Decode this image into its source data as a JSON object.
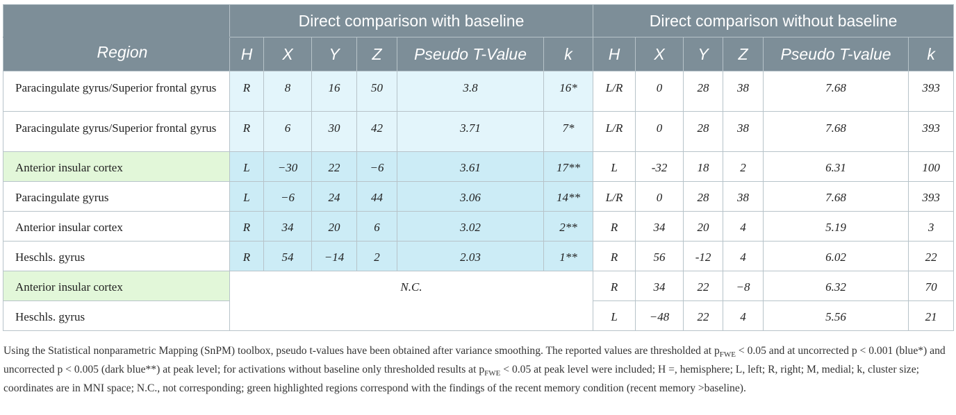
{
  "header": {
    "group_with_baseline": "Direct comparison with baseline",
    "group_without_baseline": "Direct comparison without baseline",
    "region": "Region",
    "cols_with": [
      "H",
      "X",
      "Y",
      "Z",
      "Pseudo T-Value",
      "k"
    ],
    "cols_without": [
      "H",
      "X",
      "Y",
      "Z",
      "Pseudo T-value",
      "k"
    ]
  },
  "rows": [
    {
      "region": "Paracingulate gyrus/Superior frontal gyrus",
      "green": false,
      "shade": "light",
      "with": [
        "R",
        "8",
        "16",
        "50",
        "3.8",
        "16*"
      ],
      "without": [
        "L/R",
        "0",
        "28",
        "38",
        "7.68",
        "393"
      ]
    },
    {
      "region": "Paracingulate gyrus/Superior frontal gyrus",
      "green": false,
      "shade": "light",
      "with": [
        "R",
        "6",
        "30",
        "42",
        "3.71",
        "7*"
      ],
      "without": [
        "L/R",
        "0",
        "28",
        "38",
        "7.68",
        "393"
      ]
    },
    {
      "region": "Anterior insular cortex",
      "green": true,
      "shade": "dark",
      "with": [
        "L",
        "−30",
        "22",
        "−6",
        "3.61",
        "17**"
      ],
      "without": [
        "L",
        "-32",
        "18",
        "2",
        "6.31",
        "100"
      ]
    },
    {
      "region": "Paracingulate gyrus",
      "green": false,
      "shade": "dark",
      "with": [
        "L",
        "−6",
        "24",
        "44",
        "3.06",
        "14**"
      ],
      "without": [
        "L/R",
        "0",
        "28",
        "38",
        "7.68",
        "393"
      ]
    },
    {
      "region": "Anterior insular cortex",
      "green": false,
      "shade": "dark",
      "with": [
        "R",
        "34",
        "20",
        "6",
        "3.02",
        "2**"
      ],
      "without": [
        "R",
        "34",
        "20",
        "4",
        "5.19",
        "3"
      ]
    },
    {
      "region": "Heschls. gyrus",
      "green": false,
      "shade": "dark",
      "with": [
        "R",
        "54",
        "−14",
        "2",
        "2.03",
        "1**"
      ],
      "without": [
        "R",
        "56",
        "-12",
        "4",
        "6.02",
        "22"
      ]
    },
    {
      "region": "Anterior insular cortex",
      "green": true,
      "shade": "none",
      "with": null,
      "without": [
        "R",
        "34",
        "22",
        "−8",
        "6.32",
        "70"
      ]
    },
    {
      "region": "Heschls. gyrus",
      "green": false,
      "shade": "none",
      "with": null,
      "without": [
        "L",
        "−48",
        "22",
        "4",
        "5.56",
        "21"
      ]
    }
  ],
  "not_corresponding": "N.C.",
  "footnote": {
    "part1": "Using the Statistical nonparametric Mapping (SnPM) toolbox, pseudo t-values have been obtained after variance smoothing. The reported values are thresholded at p",
    "sub1": "FWE",
    "part2": " < 0.05 and at uncorrected p < 0.001 (blue*) and uncorrected p < 0.005 (dark blue**) at peak level; for activations without baseline only thresholded results at p",
    "sub2": "FWE",
    "part3": " < 0.05 at peak level were included; H =, hemisphere; L, left; R, right; M, medial; k, cluster size; coordinates are in MNI space; N.C., not corresponding; green highlighted regions correspond with the findings of the recent memory condition (recent memory >baseline)."
  }
}
